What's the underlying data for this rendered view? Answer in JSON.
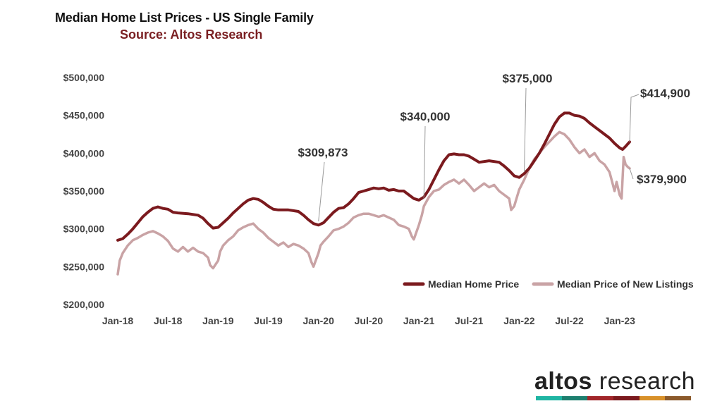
{
  "chart_data": {
    "type": "line",
    "title": "Median Home List Prices - US Single Family",
    "subtitle": "Source: Altos Research",
    "ylim": [
      200000,
      500000
    ],
    "xlim": [
      2018.0,
      2023.1
    ],
    "y_ticks": [
      {
        "value": 500000,
        "label": "$500,000"
      },
      {
        "value": 450000,
        "label": "$450,000"
      },
      {
        "value": 400000,
        "label": "$400,000"
      },
      {
        "value": 350000,
        "label": "$350,000"
      },
      {
        "value": 300000,
        "label": "$300,000"
      },
      {
        "value": 250000,
        "label": "$250,000"
      },
      {
        "value": 200000,
        "label": "$200,000"
      }
    ],
    "x_ticks": [
      {
        "value": 2018.0,
        "label": "Jan-18"
      },
      {
        "value": 2018.5,
        "label": "Jul-18"
      },
      {
        "value": 2019.0,
        "label": "Jan-19"
      },
      {
        "value": 2019.5,
        "label": "Jul-19"
      },
      {
        "value": 2020.0,
        "label": "Jan-20"
      },
      {
        "value": 2020.5,
        "label": "Jul-20"
      },
      {
        "value": 2021.0,
        "label": "Jan-21"
      },
      {
        "value": 2021.5,
        "label": "Jul-21"
      },
      {
        "value": 2022.0,
        "label": "Jan-22"
      },
      {
        "value": 2022.5,
        "label": "Jul-22"
      },
      {
        "value": 2023.0,
        "label": "Jan-23"
      }
    ],
    "series": [
      {
        "name": "Median Home Price",
        "color": "#7b1a1e",
        "points": [
          [
            2018.0,
            285000
          ],
          [
            2018.05,
            287000
          ],
          [
            2018.1,
            293000
          ],
          [
            2018.15,
            300000
          ],
          [
            2018.2,
            308000
          ],
          [
            2018.25,
            316000
          ],
          [
            2018.3,
            322000
          ],
          [
            2018.35,
            327000
          ],
          [
            2018.4,
            329000
          ],
          [
            2018.45,
            327000
          ],
          [
            2018.5,
            326000
          ],
          [
            2018.55,
            322000
          ],
          [
            2018.6,
            321000
          ],
          [
            2018.7,
            320000
          ],
          [
            2018.8,
            318000
          ],
          [
            2018.85,
            314000
          ],
          [
            2018.9,
            307000
          ],
          [
            2018.95,
            301000
          ],
          [
            2019.0,
            302000
          ],
          [
            2019.05,
            308000
          ],
          [
            2019.1,
            314000
          ],
          [
            2019.15,
            321000
          ],
          [
            2019.2,
            327000
          ],
          [
            2019.25,
            333000
          ],
          [
            2019.3,
            338000
          ],
          [
            2019.35,
            340000
          ],
          [
            2019.4,
            339000
          ],
          [
            2019.45,
            335000
          ],
          [
            2019.5,
            330000
          ],
          [
            2019.55,
            326000
          ],
          [
            2019.6,
            325000
          ],
          [
            2019.7,
            325000
          ],
          [
            2019.8,
            323000
          ],
          [
            2019.85,
            318000
          ],
          [
            2019.9,
            312000
          ],
          [
            2019.95,
            307000
          ],
          [
            2020.0,
            305000
          ],
          [
            2020.05,
            308000
          ],
          [
            2020.1,
            315000
          ],
          [
            2020.15,
            322000
          ],
          [
            2020.2,
            327000
          ],
          [
            2020.25,
            328000
          ],
          [
            2020.3,
            333000
          ],
          [
            2020.35,
            340000
          ],
          [
            2020.4,
            348000
          ],
          [
            2020.45,
            350000
          ],
          [
            2020.5,
            352000
          ],
          [
            2020.55,
            354000
          ],
          [
            2020.6,
            353000
          ],
          [
            2020.65,
            354000
          ],
          [
            2020.7,
            351000
          ],
          [
            2020.75,
            352000
          ],
          [
            2020.8,
            350000
          ],
          [
            2020.85,
            350000
          ],
          [
            2020.9,
            345000
          ],
          [
            2020.95,
            340000
          ],
          [
            2021.0,
            338000
          ],
          [
            2021.05,
            342000
          ],
          [
            2021.1,
            352000
          ],
          [
            2021.15,
            365000
          ],
          [
            2021.2,
            378000
          ],
          [
            2021.25,
            390000
          ],
          [
            2021.3,
            398000
          ],
          [
            2021.35,
            399000
          ],
          [
            2021.4,
            398000
          ],
          [
            2021.45,
            398000
          ],
          [
            2021.5,
            396000
          ],
          [
            2021.55,
            392000
          ],
          [
            2021.6,
            388000
          ],
          [
            2021.7,
            390000
          ],
          [
            2021.8,
            388000
          ],
          [
            2021.85,
            383000
          ],
          [
            2021.9,
            377000
          ],
          [
            2021.95,
            370000
          ],
          [
            2022.0,
            368000
          ],
          [
            2022.05,
            373000
          ],
          [
            2022.1,
            380000
          ],
          [
            2022.15,
            390000
          ],
          [
            2022.2,
            400000
          ],
          [
            2022.25,
            412000
          ],
          [
            2022.3,
            425000
          ],
          [
            2022.35,
            438000
          ],
          [
            2022.4,
            448000
          ],
          [
            2022.45,
            453000
          ],
          [
            2022.5,
            453000
          ],
          [
            2022.55,
            450000
          ],
          [
            2022.6,
            449000
          ],
          [
            2022.65,
            446000
          ],
          [
            2022.7,
            440000
          ],
          [
            2022.75,
            435000
          ],
          [
            2022.8,
            430000
          ],
          [
            2022.85,
            425000
          ],
          [
            2022.9,
            420000
          ],
          [
            2022.95,
            413000
          ],
          [
            2023.0,
            407000
          ],
          [
            2023.03,
            405000
          ],
          [
            2023.06,
            409000
          ],
          [
            2023.1,
            414900
          ]
        ]
      },
      {
        "name": "Median Price of New Listings",
        "color": "#c9a3a5",
        "points": [
          [
            2018.0,
            240000
          ],
          [
            2018.02,
            258000
          ],
          [
            2018.05,
            268000
          ],
          [
            2018.1,
            278000
          ],
          [
            2018.15,
            285000
          ],
          [
            2018.2,
            288000
          ],
          [
            2018.25,
            292000
          ],
          [
            2018.3,
            295000
          ],
          [
            2018.35,
            297000
          ],
          [
            2018.4,
            294000
          ],
          [
            2018.45,
            290000
          ],
          [
            2018.5,
            284000
          ],
          [
            2018.55,
            274000
          ],
          [
            2018.6,
            270000
          ],
          [
            2018.65,
            276000
          ],
          [
            2018.7,
            270000
          ],
          [
            2018.75,
            275000
          ],
          [
            2018.8,
            270000
          ],
          [
            2018.85,
            268000
          ],
          [
            2018.9,
            262000
          ],
          [
            2018.92,
            252000
          ],
          [
            2018.95,
            248000
          ],
          [
            2019.0,
            258000
          ],
          [
            2019.02,
            270000
          ],
          [
            2019.05,
            278000
          ],
          [
            2019.1,
            285000
          ],
          [
            2019.15,
            290000
          ],
          [
            2019.2,
            298000
          ],
          [
            2019.25,
            302000
          ],
          [
            2019.3,
            305000
          ],
          [
            2019.35,
            307000
          ],
          [
            2019.4,
            300000
          ],
          [
            2019.45,
            295000
          ],
          [
            2019.5,
            288000
          ],
          [
            2019.55,
            283000
          ],
          [
            2019.6,
            278000
          ],
          [
            2019.65,
            282000
          ],
          [
            2019.7,
            276000
          ],
          [
            2019.75,
            280000
          ],
          [
            2019.8,
            278000
          ],
          [
            2019.85,
            274000
          ],
          [
            2019.9,
            268000
          ],
          [
            2019.93,
            256000
          ],
          [
            2019.95,
            250000
          ],
          [
            2020.0,
            268000
          ],
          [
            2020.02,
            278000
          ],
          [
            2020.05,
            283000
          ],
          [
            2020.1,
            290000
          ],
          [
            2020.15,
            298000
          ],
          [
            2020.2,
            300000
          ],
          [
            2020.25,
            303000
          ],
          [
            2020.3,
            308000
          ],
          [
            2020.35,
            315000
          ],
          [
            2020.4,
            318000
          ],
          [
            2020.45,
            320000
          ],
          [
            2020.5,
            320000
          ],
          [
            2020.55,
            318000
          ],
          [
            2020.6,
            316000
          ],
          [
            2020.65,
            318000
          ],
          [
            2020.7,
            315000
          ],
          [
            2020.75,
            312000
          ],
          [
            2020.8,
            305000
          ],
          [
            2020.85,
            303000
          ],
          [
            2020.9,
            300000
          ],
          [
            2020.93,
            290000
          ],
          [
            2020.95,
            286000
          ],
          [
            2021.0,
            305000
          ],
          [
            2021.03,
            318000
          ],
          [
            2021.05,
            330000
          ],
          [
            2021.1,
            342000
          ],
          [
            2021.15,
            350000
          ],
          [
            2021.2,
            352000
          ],
          [
            2021.25,
            358000
          ],
          [
            2021.3,
            362000
          ],
          [
            2021.35,
            365000
          ],
          [
            2021.4,
            360000
          ],
          [
            2021.45,
            365000
          ],
          [
            2021.5,
            358000
          ],
          [
            2021.55,
            350000
          ],
          [
            2021.6,
            355000
          ],
          [
            2021.65,
            360000
          ],
          [
            2021.7,
            355000
          ],
          [
            2021.75,
            358000
          ],
          [
            2021.8,
            350000
          ],
          [
            2021.85,
            345000
          ],
          [
            2021.9,
            340000
          ],
          [
            2021.92,
            325000
          ],
          [
            2021.95,
            330000
          ],
          [
            2022.0,
            352000
          ],
          [
            2022.05,
            365000
          ],
          [
            2022.1,
            380000
          ],
          [
            2022.15,
            392000
          ],
          [
            2022.2,
            400000
          ],
          [
            2022.25,
            408000
          ],
          [
            2022.3,
            415000
          ],
          [
            2022.35,
            422000
          ],
          [
            2022.4,
            428000
          ],
          [
            2022.45,
            425000
          ],
          [
            2022.5,
            418000
          ],
          [
            2022.55,
            408000
          ],
          [
            2022.6,
            400000
          ],
          [
            2022.65,
            405000
          ],
          [
            2022.7,
            395000
          ],
          [
            2022.75,
            400000
          ],
          [
            2022.8,
            390000
          ],
          [
            2022.85,
            385000
          ],
          [
            2022.9,
            375000
          ],
          [
            2022.93,
            360000
          ],
          [
            2022.95,
            350000
          ],
          [
            2022.97,
            362000
          ],
          [
            2023.0,
            345000
          ],
          [
            2023.02,
            340000
          ],
          [
            2023.04,
            395000
          ],
          [
            2023.06,
            385000
          ],
          [
            2023.08,
            382000
          ],
          [
            2023.1,
            379900
          ]
        ]
      }
    ],
    "annotations": [
      {
        "label": "$309,873",
        "x": 2020.0,
        "y": 309873
      },
      {
        "label": "$340,000",
        "x": 2021.05,
        "y": 340000
      },
      {
        "label": "$375,000",
        "x": 2022.05,
        "y": 375000
      },
      {
        "label": "$414,900",
        "x": 2023.1,
        "y": 414900
      },
      {
        "label": "$379,900",
        "x": 2023.1,
        "y": 379900
      }
    ],
    "legend": {
      "position": "bottom-right"
    }
  },
  "brand": {
    "name_bold": "altos",
    "name_light": " research"
  },
  "brand_colors": [
    "#1fb5a3",
    "#1d7f6f",
    "#a1262a",
    "#7b1a1e",
    "#d8912a",
    "#8b5a2b"
  ]
}
